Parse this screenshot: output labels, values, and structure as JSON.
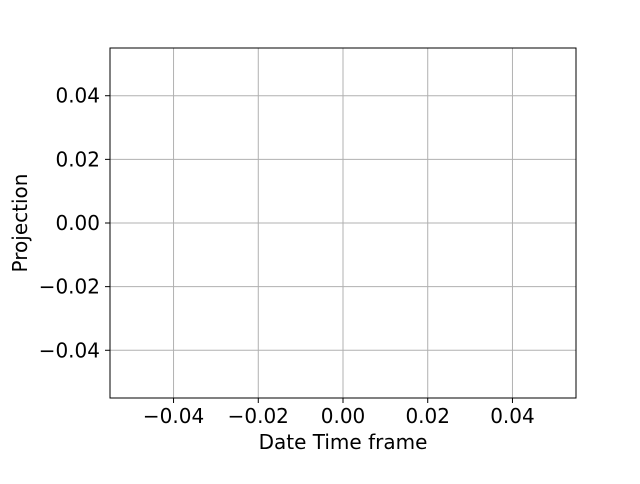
{
  "chart_data": {
    "type": "line",
    "title": "",
    "xlabel": "Date Time frame",
    "ylabel": "Projection",
    "xlim": [
      -0.055,
      0.055
    ],
    "ylim": [
      -0.055,
      0.055
    ],
    "x_ticks": [
      -0.04,
      -0.02,
      0.0,
      0.02,
      0.04
    ],
    "x_tick_labels": [
      "−0.04",
      "−0.02",
      "0.00",
      "0.02",
      "0.04"
    ],
    "y_ticks": [
      -0.04,
      -0.02,
      0.0,
      0.02,
      0.04
    ],
    "y_tick_labels": [
      "−0.04",
      "−0.02",
      "0.00",
      "0.02",
      "0.04"
    ],
    "grid": true,
    "legend": false,
    "series": [],
    "colors": {
      "grid": "#b0b0b0",
      "frame": "#000000",
      "text": "#000000",
      "background": "#ffffff"
    }
  }
}
